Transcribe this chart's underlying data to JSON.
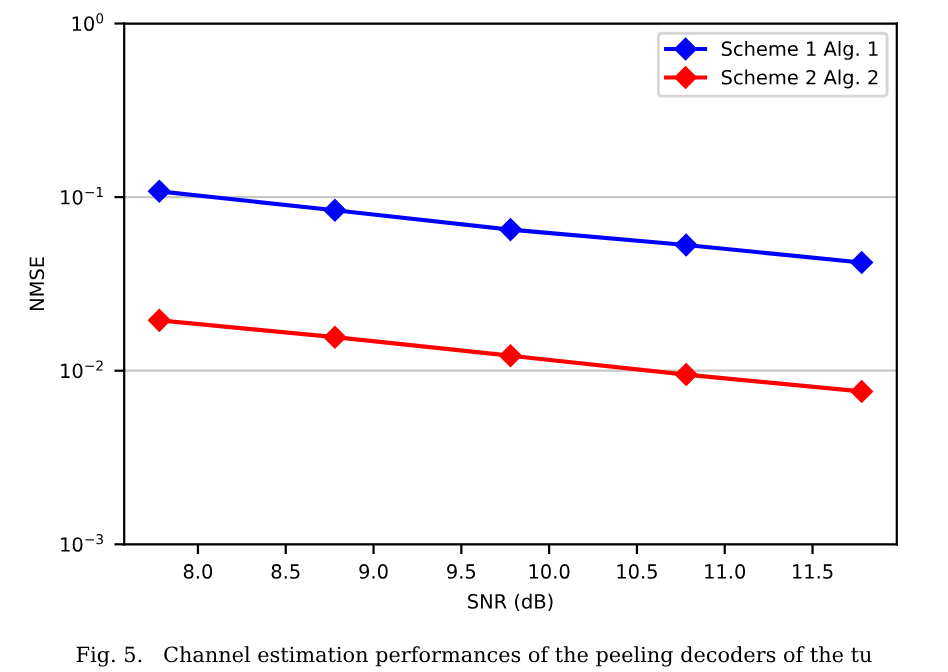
{
  "chart_data": {
    "type": "line",
    "xlabel": "SNR (dB)",
    "ylabel": "NMSE",
    "log": "y",
    "x": [
      7.78,
      8.78,
      9.78,
      10.78,
      11.78
    ],
    "series": [
      {
        "name": "Scheme 1 Alg. 1",
        "color": "#0000ff",
        "values": [
          0.108,
          0.084,
          0.065,
          0.053,
          0.042
        ]
      },
      {
        "name": "Scheme 2 Alg. 2",
        "color": "#ff0000",
        "values": [
          0.0195,
          0.0156,
          0.0122,
          0.0095,
          0.0076
        ]
      }
    ],
    "xlim": [
      7.58,
      11.98
    ],
    "xticks": [
      {
        "value": 8,
        "label": "8.0"
      },
      8.5,
      {
        "value": 9,
        "label": "9.0"
      },
      9.5,
      {
        "value": 10,
        "label": "10.0"
      },
      10.5,
      {
        "value": 11,
        "label": "11.0"
      },
      11.5
    ],
    "ylim": [
      0.001,
      1
    ],
    "yticks": [
      {
        "value": 0.001,
        "label": "10$^{−3}$"
      },
      {
        "value": 0.01,
        "label": "10$^{−2}$"
      },
      {
        "value": 0.1,
        "label": "10$^{−1}$"
      },
      {
        "value": 1,
        "label": "10$^{0}$"
      }
    ],
    "grid": "y",
    "legend": "top right",
    "marker": "diamond",
    "line_style": "solid",
    "annotations": [
      "Fig. 5.   Channel estimation performances of the peeling decoders of the tu"
    ]
  }
}
